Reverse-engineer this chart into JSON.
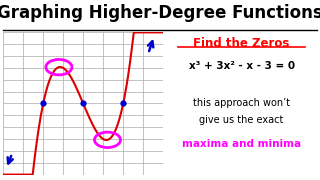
{
  "title": "Graphing Higher-Degree Functions",
  "title_fontsize": 12,
  "background_color": "#ffffff",
  "grid_color": "#aaaaaa",
  "axis_color": "#000000",
  "curve_color": "#dd0000",
  "arrow_color": "#0000cc",
  "circle_color": "#ff00ff",
  "find_zeros_text": "Find the Zeros",
  "equation_text": "x³ + 3x² - x - 3 = 0",
  "note_line1": "this approach won’t",
  "note_line2": "give us the exact",
  "maxima_text": "maxima and minima",
  "zeros": [
    -3,
    -1,
    1
  ],
  "local_max_x": -2.215,
  "local_min_x": 0.215,
  "xmin": -5,
  "xmax": 3,
  "ymin": -6,
  "ymax": 6
}
